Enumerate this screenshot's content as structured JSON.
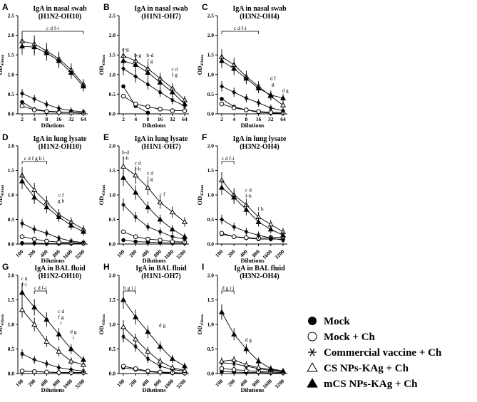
{
  "chart_data": [
    {
      "panel": "A",
      "type": "line",
      "title": "IgA in nasal swab",
      "subtitle": "(H1N2-OH10)",
      "xlabel": "Dilutions",
      "ylabel": "OD450nm",
      "xticks": [
        "2",
        "4",
        "8",
        "16",
        "32",
        "64"
      ],
      "ylim": [
        0,
        2.5
      ],
      "yticks": [
        "0.0",
        "0.5",
        "1.0",
        "1.5",
        "2.0",
        "2.5"
      ],
      "series": [
        {
          "name": "Mock",
          "values": [
            0.3,
            0.12,
            0.07,
            0.05,
            0.03,
            0.02
          ]
        },
        {
          "name": "Mock + Ch",
          "values": [
            0.2,
            0.1,
            0.06,
            0.04,
            0.03,
            0.02
          ]
        },
        {
          "name": "Commercial vaccine + Ch",
          "values": [
            0.52,
            0.38,
            0.24,
            0.14,
            0.08,
            0.05
          ]
        },
        {
          "name": "CS NPs-KAg + Ch",
          "values": [
            1.85,
            1.78,
            1.6,
            1.4,
            1.12,
            0.75
          ]
        },
        {
          "name": "mCS NPs-KAg + Ch",
          "values": [
            1.72,
            1.7,
            1.55,
            1.35,
            1.05,
            0.7
          ]
        }
      ],
      "brackets": [
        {
          "label": "c d f-i",
          "from": 0,
          "to": 5
        }
      ],
      "annotations": []
    },
    {
      "panel": "B",
      "type": "line",
      "title": "IgA in nasal swab",
      "subtitle": "(H1N1-OH7)",
      "xlabel": "Dilutions",
      "ylabel": "OD450nm",
      "xticks": [
        "2",
        "4",
        "8",
        "16",
        "32",
        "64"
      ],
      "ylim": [
        0,
        2.5
      ],
      "yticks": [
        "0.0",
        "0.5",
        "1.0",
        "1.5",
        "2.0",
        "2.5"
      ],
      "series": [
        {
          "name": "Mock",
          "values": [
            0.7,
            0.2,
            0.03,
            null,
            null,
            null
          ]
        },
        {
          "name": "Mock + Ch",
          "values": [
            0.45,
            0.25,
            0.18,
            0.12,
            0.08,
            0.08
          ]
        },
        {
          "name": "Commercial vaccine + Ch",
          "values": [
            1.15,
            0.95,
            0.75,
            0.55,
            0.35,
            0.2
          ]
        },
        {
          "name": "CS NPs-KAg + Ch",
          "values": [
            1.48,
            1.35,
            1.15,
            0.9,
            0.65,
            0.35
          ]
        },
        {
          "name": "mCS NPs-KAg + Ch",
          "values": [
            1.35,
            1.25,
            1.05,
            0.8,
            0.55,
            0.25
          ]
        }
      ],
      "brackets": [],
      "annotations": [
        {
          "lines": [
            "c-g"
          ],
          "at": 0,
          "y": 1.6
        },
        {
          "lines": [
            "b-g"
          ],
          "at": 1,
          "y": 1.45
        },
        {
          "lines": [
            "b-d",
            "f g"
          ],
          "at": 2,
          "y": 1.3
        },
        {
          "lines": [
            "c d",
            "f g"
          ],
          "at": 4,
          "y": 0.95
        }
      ]
    },
    {
      "panel": "C",
      "type": "line",
      "title": "IgA in nasal swab",
      "subtitle": "(H3N2-OH4)",
      "xlabel": "Dilutions",
      "ylabel": "OD450nm",
      "xticks": [
        "2",
        "4",
        "8",
        "16",
        "32",
        "64"
      ],
      "ylim": [
        0,
        2.5
      ],
      "yticks": [
        "0.0",
        "0.5",
        "1.0",
        "1.5",
        "2.0",
        "2.5"
      ],
      "series": [
        {
          "name": "Mock",
          "values": [
            0.38,
            0.18,
            0.1,
            0.04,
            0.02,
            0.01
          ]
        },
        {
          "name": "Mock + Ch",
          "values": [
            0.25,
            0.15,
            0.1,
            0.06,
            0.04,
            0.03
          ]
        },
        {
          "name": "Commercial vaccine + Ch",
          "values": [
            0.7,
            0.55,
            0.4,
            0.28,
            0.15,
            0.08
          ]
        },
        {
          "name": "CS NPs-KAg + Ch",
          "values": [
            1.45,
            1.25,
            0.95,
            0.7,
            0.45,
            0.22
          ]
        },
        {
          "name": "mCS NPs-KAg + Ch",
          "values": [
            1.35,
            1.15,
            0.9,
            0.65,
            0.48,
            0.4
          ]
        }
      ],
      "brackets": [
        {
          "label": "c d f-i",
          "from": 0,
          "to": 3
        }
      ],
      "annotations": [
        {
          "lines": [
            "d f",
            "g"
          ],
          "at": 4,
          "y": 0.72
        },
        {
          "lines": [
            "d g"
          ],
          "at": 5,
          "y": 0.55
        }
      ]
    },
    {
      "panel": "D",
      "type": "line",
      "title": "IgA in lung lysate",
      "subtitle": "(H1N2-OH10)",
      "xlabel": "Dilutions",
      "ylabel": "OD450nm",
      "xticks": [
        "100",
        "200",
        "400",
        "800",
        "1600",
        "3200"
      ],
      "ylim": [
        0,
        2.0
      ],
      "yticks": [
        "0.0",
        "0.5",
        "1.0",
        "1.5",
        "2.0"
      ],
      "series": [
        {
          "name": "Mock",
          "values": [
            0.02,
            0.02,
            0.01,
            0.01,
            0.01,
            0.01
          ]
        },
        {
          "name": "Mock + Ch",
          "values": [
            0.15,
            0.1,
            0.06,
            0.04,
            0.03,
            0.02
          ]
        },
        {
          "name": "Commercial vaccine + Ch",
          "values": [
            0.42,
            0.3,
            0.22,
            0.12,
            0.06,
            0.03
          ]
        },
        {
          "name": "CS NPs-KAg + Ch",
          "values": [
            1.4,
            1.1,
            0.85,
            0.6,
            0.45,
            0.3
          ]
        },
        {
          "name": "mCS NPs-KAg + Ch",
          "values": [
            1.28,
            0.95,
            0.75,
            0.55,
            0.38,
            0.25
          ]
        }
      ],
      "brackets": [
        {
          "label": "c d f g h i",
          "from": 0,
          "to": 2
        }
      ],
      "annotations": [
        {
          "lines": [
            "c f",
            "g h"
          ],
          "at": 3,
          "y": 0.85
        }
      ]
    },
    {
      "panel": "E",
      "type": "line",
      "title": "IgA in lung lysate",
      "subtitle": "(H1N1-OH7)",
      "xlabel": "Dilutions",
      "ylabel": "OD450nm",
      "xticks": [
        "100",
        "200",
        "400",
        "800",
        "1600",
        "3200"
      ],
      "ylim": [
        0,
        2.0
      ],
      "yticks": [
        "0.0",
        "0.5",
        "1.0",
        "1.5",
        "2.0"
      ],
      "series": [
        {
          "name": "Mock",
          "values": [
            0.08,
            0.05,
            0.04,
            0.03,
            0.02,
            0.02
          ]
        },
        {
          "name": "Mock + Ch",
          "values": [
            0.25,
            0.15,
            0.1,
            0.08,
            0.05,
            0.04
          ]
        },
        {
          "name": "Commercial vaccine + Ch",
          "values": [
            0.8,
            0.55,
            0.35,
            0.25,
            0.15,
            0.1
          ]
        },
        {
          "name": "CS NPs-KAg + Ch",
          "values": [
            1.58,
            1.4,
            1.15,
            0.85,
            0.65,
            0.45
          ]
        },
        {
          "name": "mCS NPs-KAg + Ch",
          "values": [
            1.35,
            1.05,
            0.75,
            0.5,
            0.3,
            0.15
          ]
        }
      ],
      "brackets": [],
      "annotations": [
        {
          "lines": [
            "b-d",
            "f-h"
          ],
          "at": 0,
          "y": 1.72
        },
        {
          "lines": [
            "c d",
            "f-h"
          ],
          "at": 1,
          "y": 1.5
        },
        {
          "lines": [
            "c d",
            "f g"
          ],
          "at": 2,
          "y": 1.3
        },
        {
          "lines": [
            "c f"
          ],
          "at": 3,
          "y": 0.98
        }
      ]
    },
    {
      "panel": "F",
      "type": "line",
      "title": "IgA in lung lysate",
      "subtitle": "(H3N2-OH4)",
      "xlabel": "Dilutions",
      "ylabel": "OD450nm",
      "xticks": [
        "100",
        "200",
        "400",
        "800",
        "1600",
        "3200"
      ],
      "ylim": [
        0,
        2.0
      ],
      "yticks": [
        "0.0",
        "0.5",
        "1.0",
        "1.5",
        "2.0"
      ],
      "series": [
        {
          "name": "Mock",
          "values": [
            0.2,
            0.15,
            0.12,
            0.1,
            0.1,
            0.1
          ]
        },
        {
          "name": "Mock + Ch",
          "values": [
            0.22,
            0.15,
            0.13,
            0.12,
            0.13,
            0.14
          ]
        },
        {
          "name": "Commercial vaccine + Ch",
          "values": [
            0.5,
            0.35,
            0.25,
            0.18,
            0.12,
            0.08
          ]
        },
        {
          "name": "CS NPs-KAg + Ch",
          "values": [
            1.3,
            1.0,
            0.8,
            0.55,
            0.4,
            0.25
          ]
        },
        {
          "name": "mCS NPs-KAg + Ch",
          "values": [
            1.15,
            0.95,
            0.7,
            0.45,
            0.3,
            0.18
          ]
        }
      ],
      "brackets": [
        {
          "label": "c d f-i",
          "from": 0,
          "to": 1
        }
      ],
      "annotations": [
        {
          "lines": [
            "c d",
            "f-h"
          ],
          "at": 2,
          "y": 0.95
        },
        {
          "lines": [
            "f h"
          ],
          "at": 3,
          "y": 0.68
        }
      ]
    },
    {
      "panel": "G",
      "type": "line",
      "title": "IgA in BAL fluid",
      "subtitle": "(H1N2-OH10)",
      "xlabel": "Dilutions",
      "ylabel": "OD450nm",
      "xticks": [
        "100",
        "200",
        "400",
        "800",
        "1600",
        "3200"
      ],
      "ylim": [
        0,
        2.0
      ],
      "yticks": [
        "0.0",
        "0.5",
        "1.0",
        "1.5",
        "2.0"
      ],
      "series": [
        {
          "name": "Mock",
          "values": [
            0.05,
            0.04,
            0.03,
            0.02,
            0.02,
            0.02
          ]
        },
        {
          "name": "Mock + Ch",
          "values": [
            0.05,
            0.04,
            0.03,
            0.02,
            0.02,
            0.02
          ]
        },
        {
          "name": "Commercial vaccine + Ch",
          "values": [
            0.4,
            0.28,
            0.2,
            0.12,
            0.08,
            0.05
          ]
        },
        {
          "name": "CS NPs-KAg + Ch",
          "values": [
            1.3,
            1.0,
            0.65,
            0.45,
            0.25,
            0.18
          ]
        },
        {
          "name": "mCS NPs-KAg + Ch",
          "values": [
            1.65,
            1.35,
            1.1,
            0.8,
            0.5,
            0.28
          ]
        }
      ],
      "brackets": [
        {
          "label": "c d f-j",
          "from": 1,
          "to": 2
        }
      ],
      "annotations": [
        {
          "lines": [
            "c d",
            "f-i"
          ],
          "at": 0,
          "y": 1.78
        },
        {
          "lines": [
            "c d",
            "f g",
            "i"
          ],
          "at": 3,
          "y": 1.0
        },
        {
          "lines": [
            "d g",
            "i"
          ],
          "at": 4,
          "y": 0.7
        }
      ]
    },
    {
      "panel": "H",
      "type": "line",
      "title": "IgA in BAL fluid",
      "subtitle": "(H1N1-OH7)",
      "xlabel": "Dilutions",
      "ylabel": "OD450nm",
      "xticks": [
        "100",
        "200",
        "400",
        "800",
        "1600",
        "3200"
      ],
      "ylim": [
        0,
        2.0
      ],
      "yticks": [
        "0.0",
        "0.5",
        "1.0",
        "1.5",
        "2.0"
      ],
      "series": [
        {
          "name": "Mock",
          "values": [
            0.12,
            0.08,
            0.04,
            0.02,
            0.01,
            0.01
          ]
        },
        {
          "name": "Mock + Ch",
          "values": [
            0.15,
            0.1,
            0.05,
            0.03,
            0.02,
            0.01
          ]
        },
        {
          "name": "Commercial vaccine + Ch",
          "values": [
            0.75,
            0.55,
            0.3,
            0.15,
            0.08,
            0.05
          ]
        },
        {
          "name": "CS NPs-KAg + Ch",
          "values": [
            0.95,
            0.7,
            0.45,
            0.25,
            0.12,
            0.06
          ]
        },
        {
          "name": "mCS NPs-KAg + Ch",
          "values": [
            1.5,
            1.15,
            0.85,
            0.55,
            0.3,
            0.15
          ]
        }
      ],
      "brackets": [
        {
          "label": "b g i j",
          "from": 0,
          "to": 1
        }
      ],
      "annotations": [
        {
          "lines": [
            "d g"
          ],
          "at": 3,
          "y": 0.95
        }
      ]
    },
    {
      "panel": "I",
      "type": "line",
      "title": "IgA in BAL fluid",
      "subtitle": "(H3N2-OH4)",
      "xlabel": "Dilutions",
      "ylabel": "OD450nm",
      "xticks": [
        "100",
        "200",
        "400",
        "800",
        "1600",
        "3200"
      ],
      "ylim": [
        0,
        2.0
      ],
      "yticks": [
        "0.0",
        "0.5",
        "1.0",
        "1.5",
        "2.0"
      ],
      "series": [
        {
          "name": "Mock",
          "values": [
            0.04,
            0.03,
            0.02,
            0.02,
            0.01,
            0.01
          ]
        },
        {
          "name": "Mock + Ch",
          "values": [
            0.1,
            0.08,
            0.06,
            0.04,
            0.03,
            0.02
          ]
        },
        {
          "name": "Commercial vaccine + Ch",
          "values": [
            0.22,
            0.2,
            0.15,
            0.1,
            0.06,
            0.04
          ]
        },
        {
          "name": "CS NPs-KAg + Ch",
          "values": [
            0.25,
            0.28,
            0.18,
            0.12,
            0.08,
            0.05
          ]
        },
        {
          "name": "mCS NPs-KAg + Ch",
          "values": [
            1.25,
            0.8,
            0.5,
            0.25,
            0.1,
            0.05
          ]
        }
      ],
      "brackets": [
        {
          "label": "d g i j",
          "from": 0,
          "to": 1
        }
      ],
      "annotations": [
        {
          "lines": [
            "d g"
          ],
          "at": 2,
          "y": 0.65
        }
      ]
    }
  ],
  "legend": {
    "position": "bottom-right",
    "items": [
      {
        "label": "Mock",
        "marker": "filled-circle"
      },
      {
        "label": "Mock + Ch",
        "marker": "open-circle"
      },
      {
        "label": "Commercial vaccine + Ch",
        "marker": "asterisk"
      },
      {
        "label": "CS NPs-KAg + Ch",
        "marker": "open-triangle"
      },
      {
        "label": "mCS NPs-KAg + Ch",
        "marker": "filled-triangle"
      }
    ]
  }
}
